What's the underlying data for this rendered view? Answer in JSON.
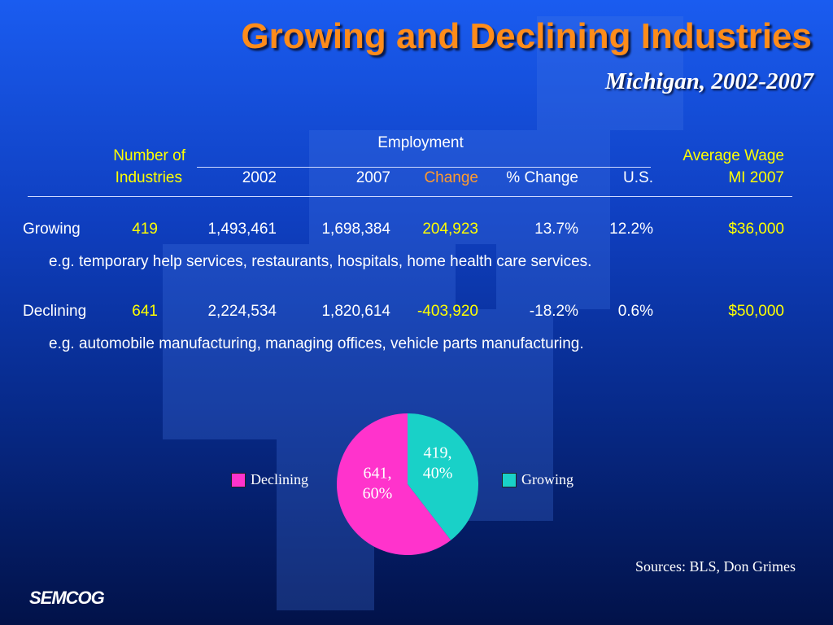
{
  "title": "Growing and Declining Industries",
  "subtitle": "Michigan, 2002-2007",
  "table": {
    "header": {
      "employment": "Employment",
      "number_of_line1": "Number of",
      "number_of_line2": "Industries",
      "col_2002": "2002",
      "col_2007": "2007",
      "col_change": "Change",
      "col_pct_change": "% Change",
      "col_us": "U.S.",
      "avg_wage_line1": "Average Wage",
      "avg_wage_line2": "MI 2007"
    },
    "rows": [
      {
        "label": "Growing",
        "number": "419",
        "emp_2002": "1,493,461",
        "emp_2007": "1,698,384",
        "change": "204,923",
        "pct_change": "13.7%",
        "us": "12.2%",
        "wage": "$36,000",
        "example": "e.g. temporary help services, restaurants, hospitals, home health care services."
      },
      {
        "label": "Declining",
        "number": "641",
        "emp_2002": "2,224,534",
        "emp_2007": "1,820,614",
        "change": "-403,920",
        "pct_change": "-18.2%",
        "us": "0.6%",
        "wage": "$50,000",
        "example": "e.g. automobile manufacturing, managing offices, vehicle parts manufacturing."
      }
    ]
  },
  "chart_data": {
    "type": "pie",
    "slices": [
      {
        "name": "Growing",
        "value": 419,
        "percent": 40,
        "color": "#19d1c8",
        "label_line1": "419,",
        "label_line2": "40%"
      },
      {
        "name": "Declining",
        "value": 641,
        "percent": 60,
        "color": "#ff33cc",
        "label_line1": "641,",
        "label_line2": "60%"
      }
    ],
    "legend": [
      {
        "name": "Declining",
        "color": "#ff33cc"
      },
      {
        "name": "Growing",
        "color": "#19d1c8"
      }
    ],
    "legend_placement": "left-and-right"
  },
  "sources": "Sources: BLS, Don Grimes",
  "logo": "SEMCOG",
  "colors": {
    "title": "#ff8c1a",
    "accent_yellow": "#ffff00",
    "accent_orange": "#ff9a2e"
  }
}
